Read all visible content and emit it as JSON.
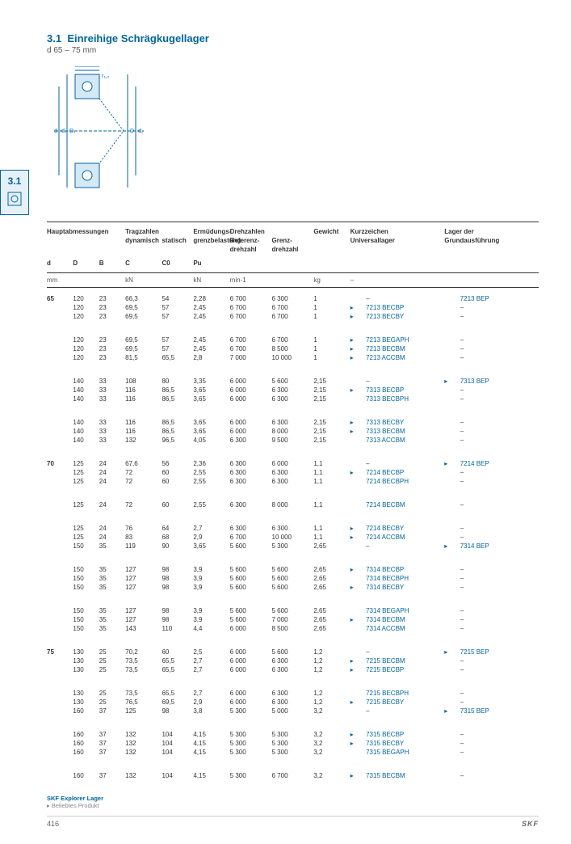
{
  "header": {
    "section": "3.1",
    "title": "Einreihige Schrägkugellager",
    "sub": "d 65 – 75 mm"
  },
  "tab": {
    "num": "3.1"
  },
  "cols": {
    "h1": "Hauptabmessungen",
    "h2": "Tragzahlen",
    "h2a": "dynamisch",
    "h2b": "statisch",
    "h3": "Ermüdungs-",
    "h3b": "grenzbelastung",
    "h4": "Drehzahlen",
    "h4a": "Referenz-",
    "h4a2": "drehzahl",
    "h4b": "Grenz-",
    "h4b2": "drehzahl",
    "h5": "Gewicht",
    "h6": "Kurzzeichen",
    "h6b": "Universallager",
    "h7": "Lager der",
    "h7b": "Grundausführung",
    "d": "d",
    "D": "D",
    "B": "B",
    "C": "C",
    "C0": "C0",
    "Pu": "Pu",
    "u_mm": "mm",
    "u_kn": "kN",
    "u_kn2": "kN",
    "u_min": "min-1",
    "u_kg": "kg",
    "u_dash": "–"
  },
  "rows": [
    [
      "65",
      "120",
      "23",
      "66,3",
      "54",
      "2,28",
      "6 700",
      "6 300",
      "1",
      "",
      "–",
      "",
      "7213 BEP"
    ],
    [
      "",
      "120",
      "23",
      "69,5",
      "57",
      "2,45",
      "6 700",
      "6 700",
      "1",
      "▸",
      "7213 BECBP",
      "",
      "–"
    ],
    [
      "",
      "120",
      "23",
      "69,5",
      "57",
      "2,45",
      "6 700",
      "6 700",
      "1",
      "▸",
      "7213 BECBY",
      "",
      "–"
    ],
    [
      "gap",
      "",
      "",
      "",
      "",
      "",
      "",
      "",
      "",
      "",
      "",
      "",
      ""
    ],
    [
      "",
      "120",
      "23",
      "69,5",
      "57",
      "2,45",
      "6 700",
      "6 700",
      "1",
      "▸",
      "7213 BEGAPH",
      "",
      "–"
    ],
    [
      "",
      "120",
      "23",
      "69,5",
      "57",
      "2,45",
      "6 700",
      "8 500",
      "1",
      "▸",
      "7213 BECBM",
      "",
      "–"
    ],
    [
      "",
      "120",
      "23",
      "81,5",
      "65,5",
      "2,8",
      "7 000",
      "10 000",
      "1",
      "▸",
      "7213 ACCBM",
      "",
      "–"
    ],
    [
      "gap",
      "",
      "",
      "",
      "",
      "",
      "",
      "",
      "",
      "",
      "",
      "",
      ""
    ],
    [
      "",
      "140",
      "33",
      "108",
      "80",
      "3,35",
      "6 000",
      "5 600",
      "2,15",
      "",
      "–",
      "▸",
      "7313 BEP"
    ],
    [
      "",
      "140",
      "33",
      "116",
      "86,5",
      "3,65",
      "6 000",
      "6 300",
      "2,15",
      "▸",
      "7313 BECBP",
      "",
      "–"
    ],
    [
      "",
      "140",
      "33",
      "116",
      "86,5",
      "3,65",
      "6 000",
      "6 300",
      "2,15",
      "",
      "7313 BECBPH",
      "",
      "–"
    ],
    [
      "gap",
      "",
      "",
      "",
      "",
      "",
      "",
      "",
      "",
      "",
      "",
      "",
      ""
    ],
    [
      "",
      "140",
      "33",
      "116",
      "86,5",
      "3,65",
      "6 000",
      "6 300",
      "2,15",
      "▸",
      "7313 BECBY",
      "",
      "–"
    ],
    [
      "",
      "140",
      "33",
      "116",
      "86,5",
      "3,65",
      "6 000",
      "8 000",
      "2,15",
      "▸",
      "7313 BECBM",
      "",
      "–"
    ],
    [
      "",
      "140",
      "33",
      "132",
      "96,5",
      "4,05",
      "6 300",
      "9 500",
      "2,15",
      "",
      "7313 ACCBM",
      "",
      "–"
    ],
    [
      "gap",
      "",
      "",
      "",
      "",
      "",
      "",
      "",
      "",
      "",
      "",
      "",
      ""
    ],
    [
      "70",
      "125",
      "24",
      "67,6",
      "56",
      "2,36",
      "6 300",
      "6 000",
      "1,1",
      "",
      "–",
      "▸",
      "7214 BEP"
    ],
    [
      "",
      "125",
      "24",
      "72",
      "60",
      "2,55",
      "6 300",
      "6 300",
      "1,1",
      "▸",
      "7214 BECBP",
      "",
      "–"
    ],
    [
      "",
      "125",
      "24",
      "72",
      "60",
      "2,55",
      "6 300",
      "6 300",
      "1,1",
      "",
      "7214 BECBPH",
      "",
      "–"
    ],
    [
      "gap",
      "",
      "",
      "",
      "",
      "",
      "",
      "",
      "",
      "",
      "",
      "",
      ""
    ],
    [
      "",
      "125",
      "24",
      "72",
      "60",
      "2,55",
      "6 300",
      "8 000",
      "1,1",
      "",
      "7214 BECBM",
      "",
      "–"
    ],
    [
      "gap",
      "",
      "",
      "",
      "",
      "",
      "",
      "",
      "",
      "",
      "",
      "",
      ""
    ],
    [
      "",
      "125",
      "24",
      "76",
      "64",
      "2,7",
      "6 300",
      "6 300",
      "1,1",
      "▸",
      "7214 BECBY",
      "",
      "–"
    ],
    [
      "",
      "125",
      "24",
      "83",
      "68",
      "2,9",
      "6 700",
      "10 000",
      "1,1",
      "▸",
      "7214 ACCBM",
      "",
      "–"
    ],
    [
      "",
      "150",
      "35",
      "119",
      "90",
      "3,65",
      "5 600",
      "5 300",
      "2,65",
      "",
      "–",
      "▸",
      "7314 BEP"
    ],
    [
      "gap",
      "",
      "",
      "",
      "",
      "",
      "",
      "",
      "",
      "",
      "",
      "",
      ""
    ],
    [
      "",
      "150",
      "35",
      "127",
      "98",
      "3,9",
      "5 600",
      "5 600",
      "2,65",
      "▸",
      "7314 BECBP",
      "",
      "–"
    ],
    [
      "",
      "150",
      "35",
      "127",
      "98",
      "3,9",
      "5 600",
      "5 600",
      "2,65",
      "",
      "7314 BECBPH",
      "",
      "–"
    ],
    [
      "",
      "150",
      "35",
      "127",
      "98",
      "3,9",
      "5 600",
      "5 600",
      "2,65",
      "▸",
      "7314 BECBY",
      "",
      "–"
    ],
    [
      "gap",
      "",
      "",
      "",
      "",
      "",
      "",
      "",
      "",
      "",
      "",
      "",
      ""
    ],
    [
      "",
      "150",
      "35",
      "127",
      "98",
      "3,9",
      "5 600",
      "5 600",
      "2,65",
      "",
      "7314 BEGAPH",
      "",
      "–"
    ],
    [
      "",
      "150",
      "35",
      "127",
      "98",
      "3,9",
      "5 600",
      "7 000",
      "2,65",
      "▸",
      "7314 BECBM",
      "",
      "–"
    ],
    [
      "",
      "150",
      "35",
      "143",
      "110",
      "4,4",
      "6 000",
      "8 500",
      "2,65",
      "",
      "7314 ACCBM",
      "",
      "–"
    ],
    [
      "gap",
      "",
      "",
      "",
      "",
      "",
      "",
      "",
      "",
      "",
      "",
      "",
      ""
    ],
    [
      "75",
      "130",
      "25",
      "70,2",
      "60",
      "2,5",
      "6 000",
      "5 600",
      "1,2",
      "",
      "–",
      "▸",
      "7215 BEP"
    ],
    [
      "",
      "130",
      "25",
      "73,5",
      "65,5",
      "2,7",
      "6 000",
      "6 300",
      "1,2",
      "▸",
      "7215 BECBM",
      "",
      "–"
    ],
    [
      "",
      "130",
      "25",
      "73,5",
      "65,5",
      "2,7",
      "6 000",
      "6 300",
      "1,2",
      "▸",
      "7215 BECBP",
      "",
      "–"
    ],
    [
      "gap",
      "",
      "",
      "",
      "",
      "",
      "",
      "",
      "",
      "",
      "",
      "",
      ""
    ],
    [
      "",
      "130",
      "25",
      "73,5",
      "65,5",
      "2,7",
      "6 000",
      "6 300",
      "1,2",
      "",
      "7215 BECBPH",
      "",
      "–"
    ],
    [
      "",
      "130",
      "25",
      "76,5",
      "69,5",
      "2,9",
      "6 000",
      "6 300",
      "1,2",
      "▸",
      "7215 BECBY",
      "",
      "–"
    ],
    [
      "",
      "160",
      "37",
      "125",
      "98",
      "3,8",
      "5 300",
      "5 000",
      "3,2",
      "",
      "–",
      "▸",
      "7315 BEP"
    ],
    [
      "gap",
      "",
      "",
      "",
      "",
      "",
      "",
      "",
      "",
      "",
      "",
      "",
      ""
    ],
    [
      "",
      "160",
      "37",
      "132",
      "104",
      "4,15",
      "5 300",
      "5 300",
      "3,2",
      "▸",
      "7315 BECBP",
      "",
      "–"
    ],
    [
      "",
      "160",
      "37",
      "132",
      "104",
      "4,15",
      "5 300",
      "5 300",
      "3,2",
      "▸",
      "7315 BECBY",
      "",
      "–"
    ],
    [
      "",
      "160",
      "37",
      "132",
      "104",
      "4,15",
      "5 300",
      "5 300",
      "3,2",
      "",
      "7315 BEGAPH",
      "",
      "–"
    ],
    [
      "gap",
      "",
      "",
      "",
      "",
      "",
      "",
      "",
      "",
      "",
      "",
      "",
      ""
    ],
    [
      "",
      "160",
      "37",
      "132",
      "104",
      "4,15",
      "5 300",
      "6 700",
      "3,2",
      "▸",
      "7315 BECBM",
      "",
      "–"
    ]
  ],
  "footer": {
    "note1": "SKF Explorer Lager",
    "note2": "▸ Beliebtes Produkt",
    "page": "416",
    "brand": "SKF"
  }
}
